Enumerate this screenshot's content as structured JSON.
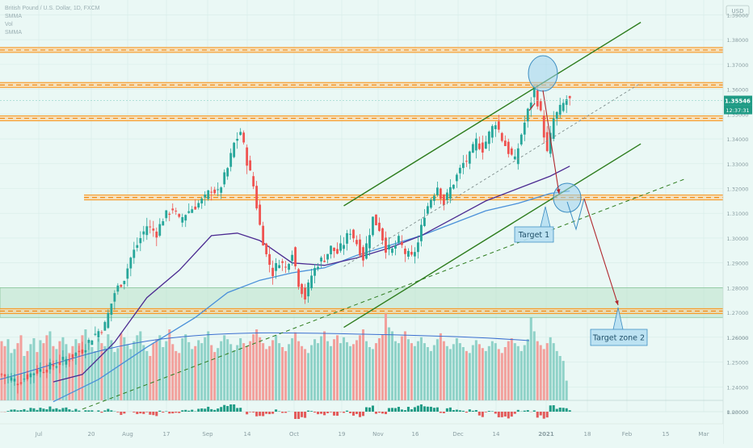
{
  "legend": {
    "symbol": "British Pound / U.S. Dollar, 1D, FXCM",
    "ma1": "SMMA",
    "vol": "Vol",
    "ma2": "SMMA"
  },
  "currency_badge": "USD",
  "price_badges": {
    "current": "1.35546",
    "countdown": "12:37:31"
  },
  "colors": {
    "background": "#eaf8f5",
    "up": "#26a69a",
    "down": "#ef5350",
    "level": "#f7931a",
    "channel": "#2e7d1e",
    "ma_fast": "#4b2a91",
    "ma_slow": "#4a90d9",
    "arrow": "#b0272d"
  },
  "annotations": {
    "target1": "Target 1",
    "target2": "Target zone 2"
  },
  "chart_data": {
    "type": "candlestick",
    "title": "British Pound / U.S. Dollar, 1D, FXCM",
    "y_range": [
      1.23,
      1.396
    ],
    "y_ticks": [
      "1.39000",
      "1.38000",
      "1.37000",
      "1.36000",
      "1.35000",
      "1.34000",
      "1.33000",
      "1.32000",
      "1.31000",
      "1.30000",
      "1.29000",
      "1.28000",
      "1.27000",
      "1.26000",
      "1.25000",
      "1.24000",
      "1.23000"
    ],
    "x_ticks": [
      "Jul",
      "20",
      "Aug",
      "17",
      "Sep",
      "14",
      "Oct",
      "19",
      "Nov",
      "16",
      "Dec",
      "14",
      "2021",
      "18",
      "Feb",
      "15",
      "Mar"
    ],
    "levels": [
      {
        "label": "1.37584",
        "value": 1.37584
      },
      {
        "label": "1.36173",
        "value": 1.36173
      },
      {
        "label": "1.34829",
        "value": 1.34829
      },
      {
        "label": "1.31637",
        "value": 1.31637
      },
      {
        "label": "1.27057",
        "value": 1.27057
      }
    ],
    "current_price": 1.35546,
    "support_zone": [
      1.268,
      1.28
    ],
    "path": [
      [
        0,
        1.245
      ],
      [
        5,
        1.242
      ],
      [
        10,
        1.246
      ],
      [
        15,
        1.248
      ],
      [
        20,
        1.251
      ],
      [
        25,
        1.255
      ],
      [
        28,
        1.26
      ],
      [
        32,
        1.265
      ],
      [
        35,
        1.278
      ],
      [
        38,
        1.284
      ],
      [
        40,
        1.292
      ],
      [
        43,
        1.3
      ],
      [
        45,
        1.305
      ],
      [
        48,
        1.302
      ],
      [
        50,
        1.308
      ],
      [
        53,
        1.312
      ],
      [
        55,
        1.307
      ],
      [
        57,
        1.31
      ],
      [
        60,
        1.313
      ],
      [
        63,
        1.316
      ],
      [
        65,
        1.32
      ],
      [
        67,
        1.318
      ],
      [
        70,
        1.328
      ],
      [
        72,
        1.338
      ],
      [
        74,
        1.343
      ],
      [
        76,
        1.331
      ],
      [
        78,
        1.321
      ],
      [
        80,
        1.305
      ],
      [
        82,
        1.293
      ],
      [
        84,
        1.286
      ],
      [
        86,
        1.291
      ],
      [
        88,
        1.288
      ],
      [
        90,
        1.295
      ],
      [
        92,
        1.282
      ],
      [
        94,
        1.276
      ],
      [
        96,
        1.285
      ],
      [
        98,
        1.29
      ],
      [
        100,
        1.292
      ],
      [
        102,
        1.296
      ],
      [
        104,
        1.294
      ],
      [
        106,
        1.298
      ],
      [
        108,
        1.303
      ],
      [
        110,
        1.298
      ],
      [
        112,
        1.292
      ],
      [
        115,
        1.308
      ],
      [
        117,
        1.304
      ],
      [
        119,
        1.296
      ],
      [
        121,
        1.295
      ],
      [
        123,
        1.299
      ],
      [
        125,
        1.294
      ],
      [
        127,
        1.292
      ],
      [
        129,
        1.298
      ],
      [
        131,
        1.31
      ],
      [
        133,
        1.316
      ],
      [
        135,
        1.321
      ],
      [
        137,
        1.314
      ],
      [
        139,
        1.32
      ],
      [
        141,
        1.325
      ],
      [
        143,
        1.33
      ],
      [
        145,
        1.333
      ],
      [
        147,
        1.339
      ],
      [
        149,
        1.336
      ],
      [
        151,
        1.342
      ],
      [
        153,
        1.347
      ],
      [
        155,
        1.34
      ],
      [
        157,
        1.335
      ],
      [
        159,
        1.331
      ],
      [
        161,
        1.342
      ],
      [
        163,
        1.351
      ],
      [
        165,
        1.36
      ],
      [
        167,
        1.35
      ],
      [
        169,
        1.334
      ],
      [
        171,
        1.348
      ],
      [
        173,
        1.352
      ],
      [
        175,
        1.356
      ],
      [
        176,
        1.35546
      ]
    ],
    "ma_fast": [
      [
        16,
        1.242
      ],
      [
        25,
        1.245
      ],
      [
        35,
        1.258
      ],
      [
        45,
        1.276
      ],
      [
        55,
        1.287
      ],
      [
        65,
        1.301
      ],
      [
        73,
        1.302
      ],
      [
        80,
        1.299
      ],
      [
        90,
        1.29
      ],
      [
        100,
        1.289
      ],
      [
        110,
        1.292
      ],
      [
        120,
        1.296
      ],
      [
        130,
        1.301
      ],
      [
        140,
        1.308
      ],
      [
        150,
        1.315
      ],
      [
        160,
        1.32
      ],
      [
        170,
        1.325
      ],
      [
        176,
        1.329
      ]
    ],
    "ma_slow": [
      [
        16,
        1.234
      ],
      [
        30,
        1.243
      ],
      [
        45,
        1.256
      ],
      [
        60,
        1.268
      ],
      [
        70,
        1.278
      ],
      [
        80,
        1.283
      ],
      [
        90,
        1.286
      ],
      [
        100,
        1.288
      ],
      [
        110,
        1.293
      ],
      [
        120,
        1.297
      ],
      [
        130,
        1.301
      ],
      [
        140,
        1.306
      ],
      [
        150,
        1.311
      ],
      [
        160,
        1.314
      ],
      [
        170,
        1.318
      ],
      [
        176,
        1.319
      ]
    ],
    "volume": [
      60,
      55,
      62,
      48,
      52,
      58,
      66,
      45,
      50,
      57,
      63,
      49,
      61,
      58,
      66,
      70,
      55,
      52,
      60,
      64,
      57,
      48,
      55,
      62,
      58,
      66,
      72,
      60,
      54,
      50,
      63,
      58,
      55,
      67,
      61,
      49,
      53,
      68,
      64,
      57,
      52,
      60,
      66,
      70,
      56,
      50,
      45,
      58,
      62,
      66,
      54,
      60,
      72,
      57,
      50,
      48,
      63,
      67,
      59,
      52,
      55,
      61,
      58,
      64,
      70,
      56,
      49,
      53,
      60,
      66,
      62,
      57,
      51,
      56,
      63,
      58,
      55,
      60,
      67,
      72,
      64,
      58,
      52,
      55,
      61,
      66,
      58,
      54,
      50,
      57,
      63,
      69,
      60,
      55,
      52,
      48,
      56,
      62,
      58,
      65,
      70,
      60,
      55,
      62,
      66,
      58,
      64,
      59,
      55,
      57,
      61,
      66,
      72,
      60,
      54,
      52,
      58,
      63,
      67,
      88,
      74,
      70,
      60,
      58,
      65,
      70,
      62,
      58,
      55,
      60,
      64,
      58,
      54,
      50,
      56,
      62,
      68,
      60,
      55,
      52,
      57,
      63,
      58,
      54,
      50,
      48,
      56,
      61,
      57,
      53,
      50,
      55,
      60,
      58,
      52,
      48,
      54,
      60,
      63,
      58,
      55,
      50,
      56,
      62,
      84,
      70,
      60,
      56,
      52,
      58,
      64,
      58,
      50,
      45,
      40,
      20
    ]
  }
}
